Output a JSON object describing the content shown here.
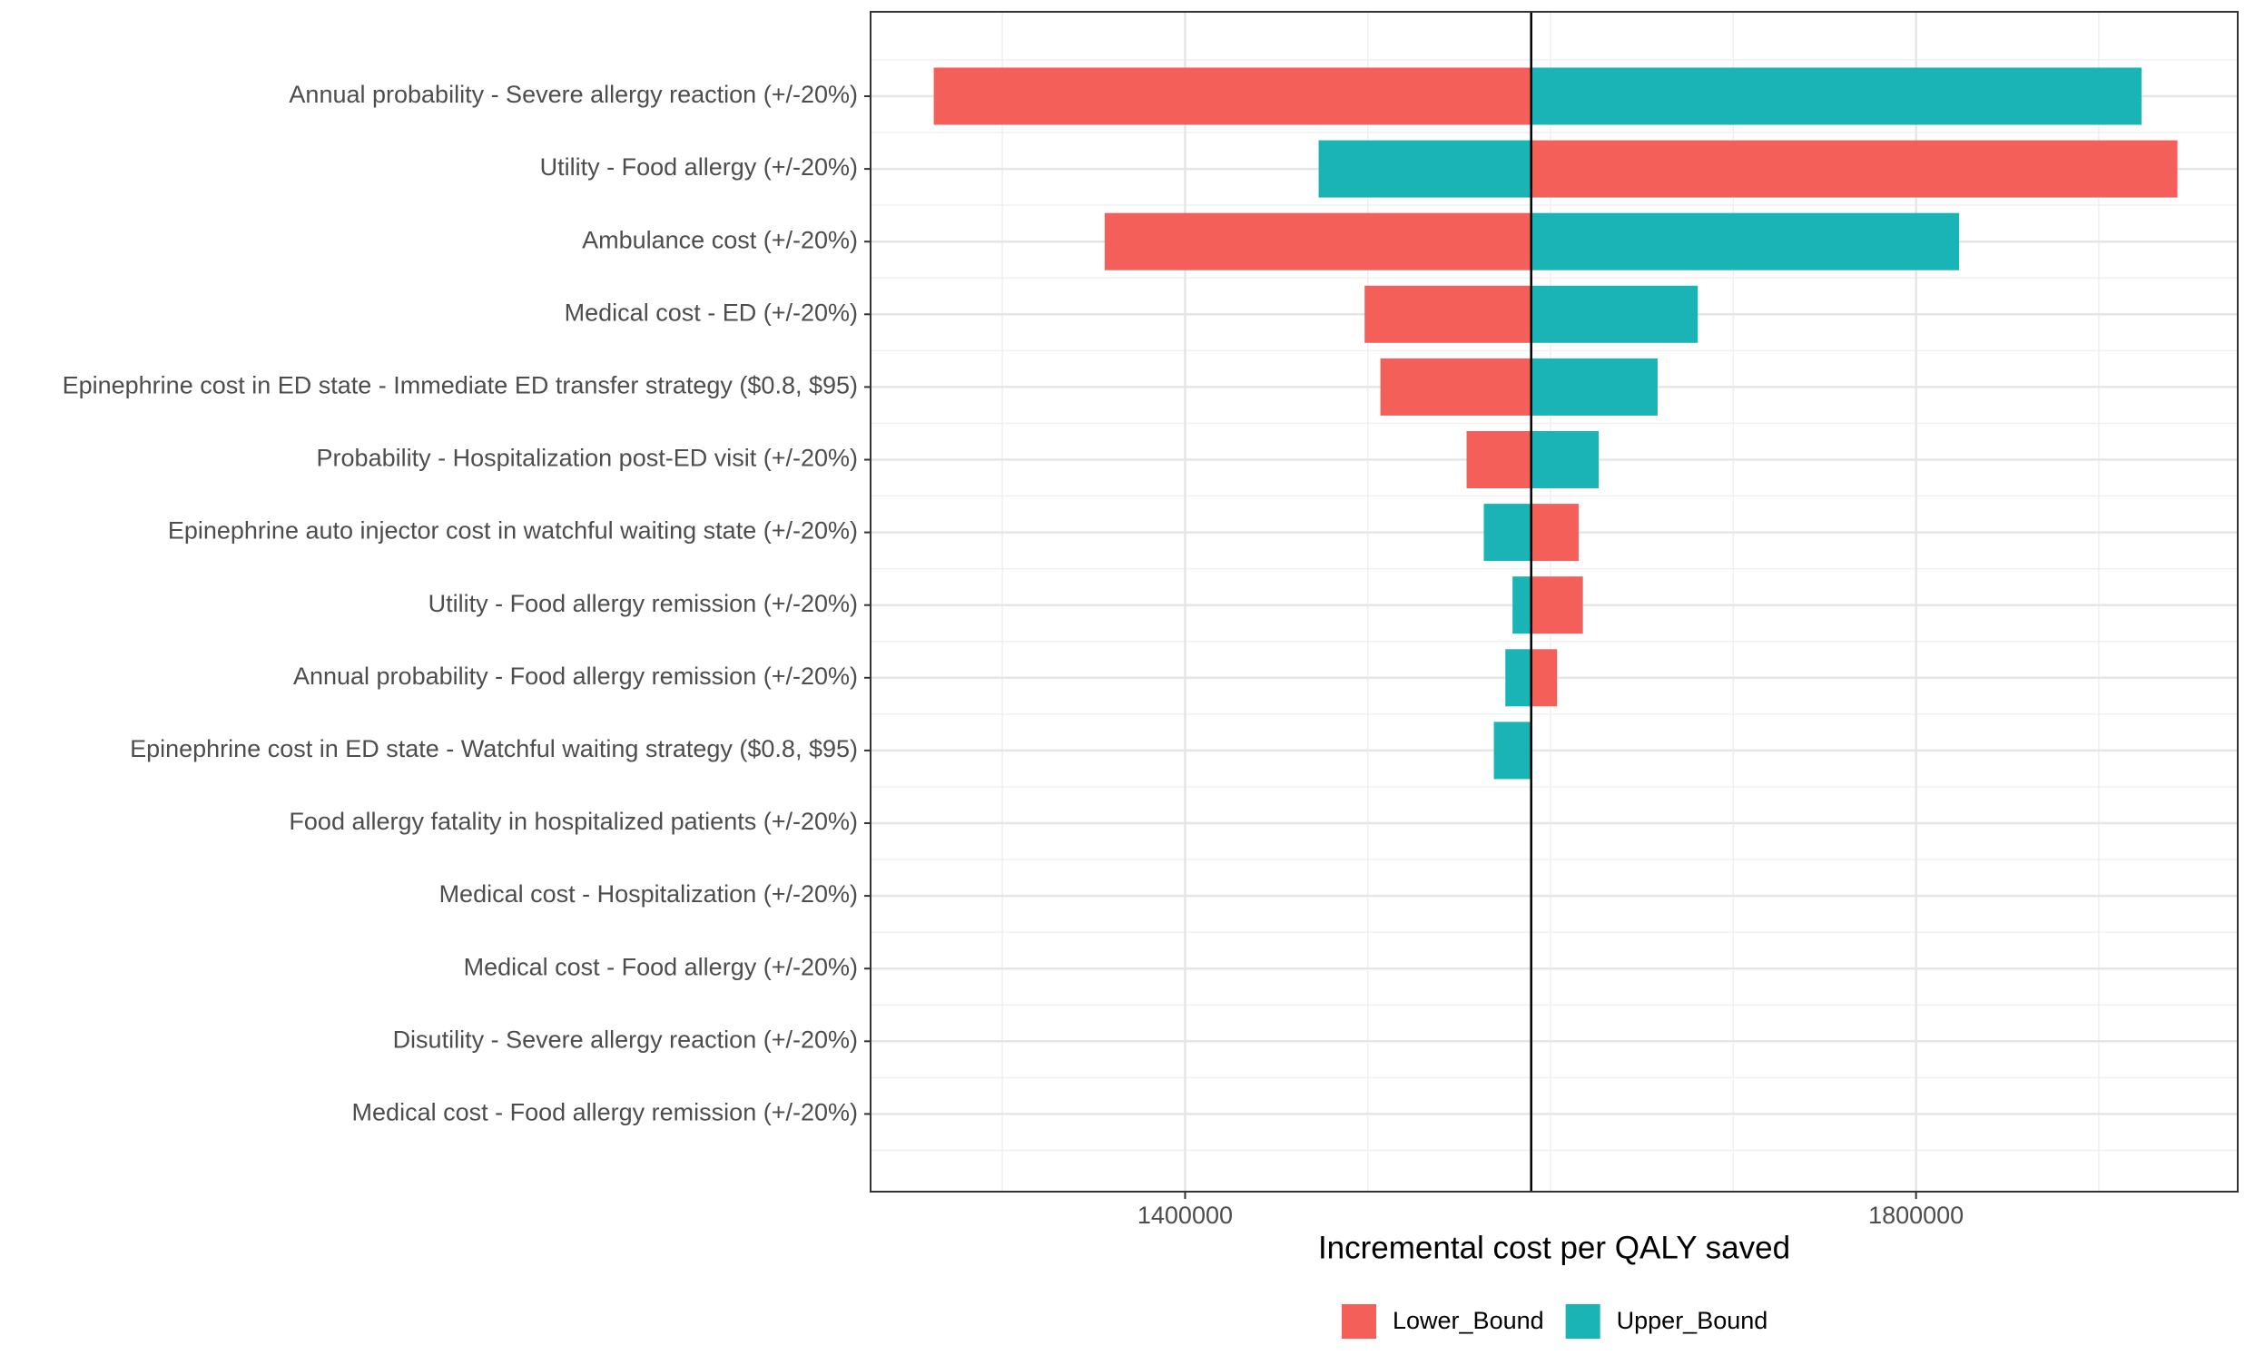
{
  "chart_data": {
    "type": "tornado",
    "x_label": "Incremental cost per QALY saved",
    "categories": [
      "Annual probability - Severe allergy reaction (+/-20%)",
      "Utility - Food allergy (+/-20%)",
      "Ambulance cost (+/-20%)",
      "Medical cost - ED (+/-20%)",
      "Epinephrine cost in ED state - Immediate ED transfer strategy ($0.8, $95)",
      "Probability - Hospitalization post-ED visit (+/-20%)",
      "Epinephrine auto injector cost in watchful waiting state (+/-20%)",
      "Utility - Food allergy remission (+/-20%)",
      "Annual probability - Food allergy remission (+/-20%)",
      "Epinephrine cost in ED state - Watchful waiting strategy ($0.8, $95)",
      "Food allergy fatality in hospitalized patients (+/-20%)",
      "Medical cost - Hospitalization (+/-20%)",
      "Medical cost - Food allergy (+/-20%)",
      "Disutility - Severe allergy reaction (+/-20%)",
      "Medical cost - Food allergy remission (+/-20%)"
    ],
    "base": 1589400,
    "series": [
      {
        "name": "Lower_Bound",
        "color": "#F45F5A",
        "values": [
          1262470,
          1943030,
          1355990,
          1498240,
          1506880,
          1554040,
          1615340,
          1617700,
          1603550,
          1589400,
          1589000,
          1589400,
          1589400,
          1589400,
          1589400
        ]
      },
      {
        "name": "Upper_Bound",
        "color": "#1AB3B6",
        "values": [
          1923390,
          1473090,
          1823580,
          1680570,
          1658560,
          1626340,
          1563470,
          1579190,
          1575260,
          1568970,
          1590000,
          1589400,
          1589400,
          1589400,
          1589400
        ]
      }
    ],
    "xlim": [
      1227890,
      1976040
    ],
    "xticks": [
      1400000,
      1800000
    ],
    "x_minor_grid": [
      1300000,
      1500000,
      1600000,
      1700000,
      1900000
    ],
    "grid": true,
    "legend": "bottom"
  }
}
